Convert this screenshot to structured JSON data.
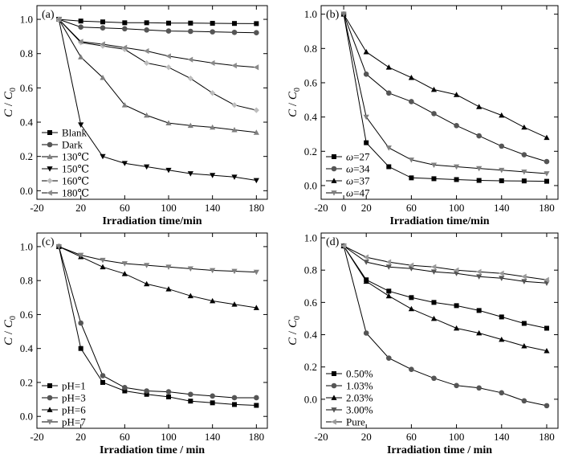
{
  "chart_data": [
    {
      "type": "line",
      "panel_label": "(a)",
      "xlabel": "Irradiation time/min",
      "ylabel_main": "C",
      "ylabel_sep": " / ",
      "ylabel_sub_base": "C",
      "ylabel_sub": "0",
      "xlim": [
        -20,
        190
      ],
      "ylim": [
        -0.05,
        1.08
      ],
      "xticks": [
        -20,
        20,
        60,
        100,
        140,
        180
      ],
      "yticks": [
        0.0,
        0.2,
        0.4,
        0.6,
        0.8,
        1.0
      ],
      "ytick_labels": [
        "0.0",
        "0.2",
        "0.4",
        "0.6",
        "0.8",
        "1.0"
      ],
      "legend_position": "bottom-left",
      "series": [
        {
          "name": "Blank",
          "marker": "square",
          "color": "#000000",
          "x": [
            0,
            20,
            40,
            60,
            80,
            100,
            120,
            140,
            160,
            180
          ],
          "y": [
            1.0,
            0.99,
            0.985,
            0.98,
            0.98,
            0.978,
            0.978,
            0.977,
            0.976,
            0.975
          ]
        },
        {
          "name": "Dark",
          "marker": "circle",
          "color": "#555555",
          "x": [
            0,
            20,
            40,
            60,
            80,
            100,
            120,
            140,
            160,
            180
          ],
          "y": [
            1.0,
            0.955,
            0.95,
            0.945,
            0.938,
            0.932,
            0.93,
            0.927,
            0.924,
            0.922
          ]
        },
        {
          "name": "130℃",
          "marker": "triangle-up",
          "color": "#7f7f7f",
          "x": [
            0,
            20,
            40,
            60,
            80,
            100,
            120,
            140,
            160,
            180
          ],
          "y": [
            1.0,
            0.78,
            0.66,
            0.5,
            0.44,
            0.395,
            0.38,
            0.37,
            0.355,
            0.34
          ]
        },
        {
          "name": "150℃",
          "marker": "triangle-down",
          "color": "#000000",
          "x": [
            0,
            20,
            40,
            60,
            80,
            100,
            120,
            140,
            160,
            180
          ],
          "y": [
            1.0,
            0.385,
            0.2,
            0.16,
            0.14,
            0.12,
            0.1,
            0.09,
            0.08,
            0.06
          ]
        },
        {
          "name": "160℃",
          "marker": "diamond",
          "color": "#bdbdbd",
          "x": [
            0,
            20,
            40,
            60,
            80,
            100,
            120,
            140,
            160,
            180
          ],
          "y": [
            1.0,
            0.865,
            0.845,
            0.825,
            0.745,
            0.72,
            0.655,
            0.57,
            0.5,
            0.47
          ]
        },
        {
          "name": "180℃",
          "marker": "triangle-left",
          "color": "#8a8a8a",
          "x": [
            0,
            20,
            40,
            60,
            80,
            100,
            120,
            140,
            160,
            180
          ],
          "y": [
            1.0,
            0.87,
            0.855,
            0.835,
            0.815,
            0.785,
            0.765,
            0.745,
            0.73,
            0.72
          ]
        }
      ]
    },
    {
      "type": "line",
      "panel_label": "(b)",
      "xlabel": "Irradiation time/min",
      "ylabel_main": "C",
      "ylabel_sep": " / ",
      "ylabel_sub_base": "C",
      "ylabel_sub": "0",
      "xlim": [
        -20,
        190
      ],
      "ylim": [
        -0.08,
        1.05
      ],
      "xticks": [
        -20,
        0,
        20,
        60,
        100,
        140,
        180
      ],
      "yticks": [
        0.0,
        0.2,
        0.4,
        0.6,
        0.8,
        1.0
      ],
      "ytick_labels": [
        "0.0",
        "0.2",
        "0.4",
        "0.6",
        "0.8",
        "1.0"
      ],
      "legend_position": "bottom-left",
      "series": [
        {
          "name": "ω=27",
          "marker": "square",
          "color": "#000000",
          "x": [
            0,
            20,
            40,
            60,
            80,
            100,
            120,
            140,
            160,
            180
          ],
          "y": [
            1.0,
            0.25,
            0.11,
            0.045,
            0.04,
            0.035,
            0.03,
            0.028,
            0.027,
            0.025
          ]
        },
        {
          "name": "ω=34",
          "marker": "circle",
          "color": "#555555",
          "x": [
            0,
            20,
            40,
            60,
            80,
            100,
            120,
            140,
            160,
            180
          ],
          "y": [
            1.0,
            0.65,
            0.54,
            0.49,
            0.42,
            0.35,
            0.29,
            0.23,
            0.18,
            0.14
          ]
        },
        {
          "name": "ω=37",
          "marker": "triangle-up",
          "color": "#000000",
          "x": [
            0,
            20,
            40,
            60,
            80,
            100,
            120,
            140,
            160,
            180
          ],
          "y": [
            1.0,
            0.78,
            0.69,
            0.63,
            0.56,
            0.53,
            0.46,
            0.41,
            0.34,
            0.28
          ]
        },
        {
          "name": "ω=47",
          "marker": "triangle-down",
          "color": "#7f7f7f",
          "x": [
            0,
            20,
            40,
            60,
            80,
            100,
            120,
            140,
            160,
            180
          ],
          "y": [
            1.0,
            0.4,
            0.22,
            0.15,
            0.12,
            0.11,
            0.1,
            0.09,
            0.08,
            0.07
          ]
        }
      ]
    },
    {
      "type": "line",
      "panel_label": "(c)",
      "xlabel": "Irradiation time / min",
      "ylabel_main": "C",
      "ylabel_sep": " / ",
      "ylabel_sub_base": "C",
      "ylabel_sub": "0",
      "xlim": [
        -20,
        190
      ],
      "ylim": [
        -0.07,
        1.08
      ],
      "xticks": [
        -20,
        20,
        60,
        100,
        140,
        180
      ],
      "yticks": [
        0.0,
        0.2,
        0.4,
        0.6,
        0.8,
        1.0
      ],
      "ytick_labels": [
        "0.0",
        "0.2",
        "0.4",
        "0.6",
        "0.8",
        "1.0"
      ],
      "legend_position": "bottom-left",
      "series": [
        {
          "name": "pH=1",
          "marker": "square",
          "color": "#000000",
          "x": [
            0,
            20,
            40,
            60,
            80,
            100,
            120,
            140,
            160,
            180
          ],
          "y": [
            1.0,
            0.4,
            0.2,
            0.15,
            0.13,
            0.115,
            0.09,
            0.08,
            0.07,
            0.065
          ]
        },
        {
          "name": "pH=3",
          "marker": "circle",
          "color": "#555555",
          "x": [
            0,
            20,
            40,
            60,
            80,
            100,
            120,
            140,
            160,
            180
          ],
          "y": [
            1.0,
            0.55,
            0.24,
            0.17,
            0.15,
            0.145,
            0.13,
            0.12,
            0.11,
            0.11
          ]
        },
        {
          "name": "pH=6",
          "marker": "triangle-up",
          "color": "#000000",
          "x": [
            0,
            20,
            40,
            60,
            80,
            100,
            120,
            140,
            160,
            180
          ],
          "y": [
            1.0,
            0.94,
            0.88,
            0.84,
            0.78,
            0.75,
            0.71,
            0.68,
            0.66,
            0.64
          ]
        },
        {
          "name": "pH=7",
          "marker": "triangle-down",
          "color": "#7f7f7f",
          "x": [
            0,
            20,
            40,
            60,
            80,
            100,
            120,
            140,
            160,
            180
          ],
          "y": [
            1.0,
            0.95,
            0.92,
            0.9,
            0.89,
            0.88,
            0.87,
            0.86,
            0.855,
            0.85
          ]
        }
      ]
    },
    {
      "type": "line",
      "panel_label": "(d)",
      "xlabel": "Irradiation time / min",
      "ylabel_main": "C",
      "ylabel_sep": " / ",
      "ylabel_sub_base": "C",
      "ylabel_sub": "0",
      "xlim": [
        -20,
        190
      ],
      "ylim": [
        -0.18,
        1.03
      ],
      "xticks": [
        -20,
        20,
        60,
        100,
        140,
        180
      ],
      "yticks": [
        0.0,
        0.2,
        0.4,
        0.6,
        0.8,
        1.0
      ],
      "ytick_labels": [
        "0.0",
        "0.2",
        "0.4",
        "0.6",
        "0.8",
        "1.0"
      ],
      "legend_position": "bottom-left",
      "series": [
        {
          "name": "0.50%",
          "marker": "square",
          "color": "#000000",
          "x": [
            0,
            20,
            40,
            60,
            80,
            100,
            120,
            140,
            160,
            180
          ],
          "y": [
            0.95,
            0.74,
            0.67,
            0.63,
            0.6,
            0.58,
            0.55,
            0.51,
            0.47,
            0.44
          ]
        },
        {
          "name": "1.03%",
          "marker": "circle",
          "color": "#555555",
          "x": [
            0,
            20,
            40,
            60,
            80,
            100,
            120,
            140,
            160,
            180
          ],
          "y": [
            0.95,
            0.41,
            0.255,
            0.185,
            0.13,
            0.085,
            0.07,
            0.04,
            -0.01,
            -0.04
          ]
        },
        {
          "name": "2.03%",
          "marker": "triangle-up",
          "color": "#000000",
          "x": [
            0,
            20,
            40,
            60,
            80,
            100,
            120,
            140,
            160,
            180
          ],
          "y": [
            0.95,
            0.73,
            0.64,
            0.56,
            0.5,
            0.44,
            0.41,
            0.37,
            0.33,
            0.3
          ]
        },
        {
          "name": "3.00%",
          "marker": "triangle-down",
          "color": "#555555",
          "x": [
            0,
            20,
            40,
            60,
            80,
            100,
            120,
            140,
            160,
            180
          ],
          "y": [
            0.95,
            0.85,
            0.82,
            0.81,
            0.79,
            0.78,
            0.76,
            0.75,
            0.73,
            0.72
          ]
        },
        {
          "name": "Pure",
          "marker": "triangle-left",
          "color": "#9a9a9a",
          "x": [
            0,
            20,
            40,
            60,
            80,
            100,
            120,
            140,
            160,
            180
          ],
          "y": [
            0.95,
            0.88,
            0.85,
            0.83,
            0.82,
            0.8,
            0.79,
            0.78,
            0.76,
            0.74
          ]
        }
      ]
    }
  ]
}
